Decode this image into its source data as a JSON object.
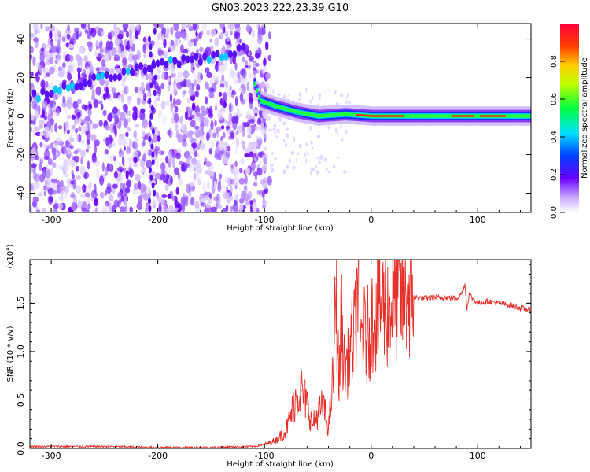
{
  "title": "GN03.2023.222.23.39.G10",
  "colors": {
    "snr_line": "#e8302a",
    "spectrogram_ridge": "#7a00ff",
    "spectrogram_noise": "#c9a8ff",
    "axis": "#000000"
  },
  "chart_data": [
    {
      "type": "heatmap",
      "xlabel": "Height of straight line (km)",
      "ylabel": "Frequency (Hz)",
      "xlim": [
        -320,
        150
      ],
      "ylim": [
        -50,
        48
      ],
      "xticks": [
        -300,
        -200,
        -100,
        0,
        100
      ],
      "yticks": [
        -40,
        -20,
        0,
        20,
        40
      ],
      "x_tick_labels": [
        "-300",
        "-200",
        "-100",
        "0",
        "100"
      ],
      "y_tick_labels": [
        "-40",
        "-20",
        "0",
        "20",
        "40"
      ],
      "colorbar": {
        "label": "Normalized spectral amplitude",
        "range": [
          0.0,
          1.0
        ],
        "ticks": [
          0.0,
          0.2,
          0.4,
          0.6,
          0.8
        ],
        "tick_labels": [
          "0.0",
          "0.2",
          "0.4",
          "0.6",
          "0.8"
        ],
        "colormap": "rainbow"
      },
      "ridge": [
        {
          "x": -320,
          "y": 10
        },
        {
          "x": -300,
          "y": 12
        },
        {
          "x": -270,
          "y": 17
        },
        {
          "x": -240,
          "y": 21
        },
        {
          "x": -210,
          "y": 25
        },
        {
          "x": -180,
          "y": 28
        },
        {
          "x": -150,
          "y": 31
        },
        {
          "x": -120,
          "y": 34
        },
        {
          "x": -105,
          "y": 8
        },
        {
          "x": -90,
          "y": 5
        },
        {
          "x": -70,
          "y": 2
        },
        {
          "x": -50,
          "y": 0
        },
        {
          "x": -25,
          "y": 1
        },
        {
          "x": 0,
          "y": 0
        },
        {
          "x": 50,
          "y": 0
        },
        {
          "x": 100,
          "y": 0
        },
        {
          "x": 150,
          "y": 0
        }
      ]
    },
    {
      "type": "line",
      "xlabel": "Height of straight line (km)",
      "ylabel": "SNR (10 * v/v)",
      "y_multiplier_label": "(x10",
      "y_multiplier_exp": "4",
      "y_multiplier_close": ")",
      "xlim": [
        -320,
        150
      ],
      "ylim": [
        0,
        1.95
      ],
      "xticks": [
        -300,
        -200,
        -100,
        0,
        100
      ],
      "yticks": [
        0.0,
        0.5,
        1.0,
        1.5
      ],
      "x_tick_labels": [
        "-300",
        "-200",
        "-100",
        "0",
        "100"
      ],
      "y_tick_labels": [
        "0.0",
        "0.5",
        "1.0",
        "1.5"
      ],
      "series": [
        {
          "x": [
            -320,
            -300,
            -250,
            -200,
            -150,
            -110,
            -100,
            -90,
            -80,
            -75,
            -70,
            -65,
            -60,
            -55,
            -50,
            -45,
            -40,
            -35,
            -33,
            -30,
            -28,
            -25,
            -20,
            -15,
            -12,
            -10,
            -8,
            -5,
            0,
            5,
            10,
            15,
            20,
            25,
            30,
            35,
            40,
            50,
            60,
            70,
            80,
            85,
            88,
            90,
            92,
            95,
            100,
            110,
            120,
            130,
            140,
            150
          ],
          "y": [
            0.02,
            0.02,
            0.02,
            0.01,
            0.01,
            0.02,
            0.04,
            0.08,
            0.18,
            0.35,
            0.55,
            0.6,
            0.45,
            0.25,
            0.35,
            0.45,
            0.2,
            0.8,
            1.75,
            0.6,
            1.35,
            0.8,
            1.0,
            1.2,
            1.9,
            1.1,
            1.25,
            1.1,
            1.3,
            1.4,
            1.5,
            1.45,
            1.5,
            1.55,
            1.55,
            1.57,
            1.56,
            1.55,
            1.56,
            1.56,
            1.55,
            1.6,
            1.7,
            1.45,
            1.6,
            1.55,
            1.5,
            1.52,
            1.5,
            1.48,
            1.45,
            1.43
          ]
        }
      ]
    }
  ]
}
